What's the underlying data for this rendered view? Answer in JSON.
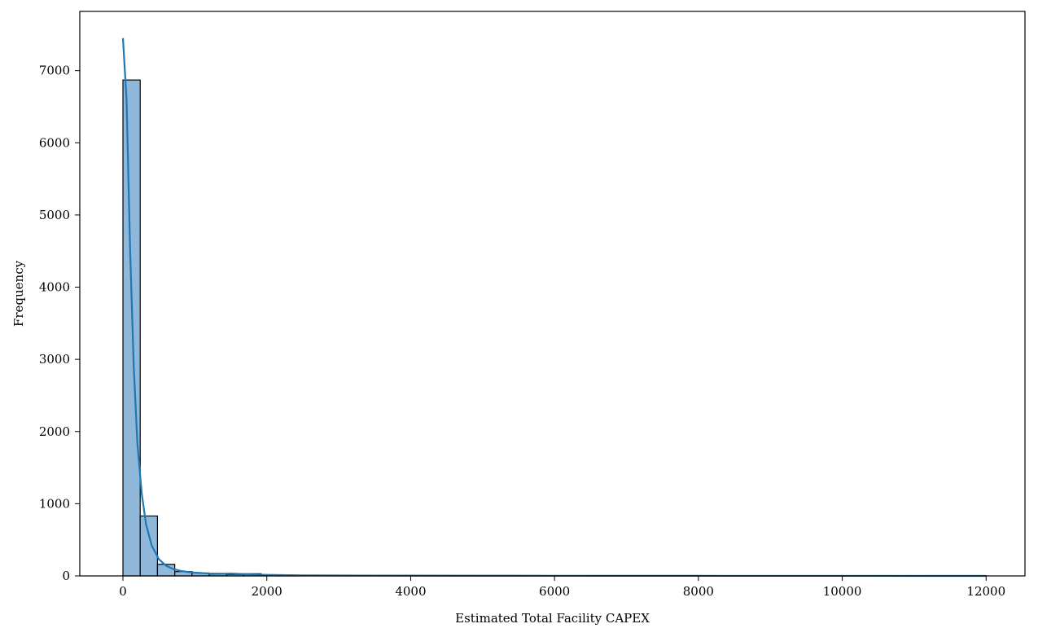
{
  "chart_data": {
    "type": "bar",
    "xlabel": "Estimated Total Facility CAPEX",
    "ylabel": "Frequency",
    "xlim": [
      -600,
      12540
    ],
    "ylim": [
      0,
      7820
    ],
    "x_ticks": [
      0,
      2000,
      4000,
      6000,
      8000,
      10000,
      12000
    ],
    "y_ticks": [
      0,
      1000,
      2000,
      3000,
      4000,
      5000,
      6000,
      7000
    ],
    "grid": false,
    "bin_width": 240,
    "bins_start": 0,
    "values": [
      6870,
      830,
      160,
      60,
      40,
      25,
      20,
      30,
      15,
      10,
      8,
      5,
      4,
      3,
      3,
      2,
      2,
      2,
      1,
      1,
      1,
      1,
      1,
      1,
      1,
      1,
      0,
      1,
      0,
      1,
      0,
      0,
      1,
      0,
      0,
      0,
      0,
      1,
      0,
      0,
      0,
      0,
      0,
      0,
      0,
      0,
      0,
      0,
      0,
      1
    ],
    "kde": {
      "name": "",
      "x": [
        0,
        50,
        100,
        150,
        200,
        260,
        320,
        400,
        500,
        600,
        700,
        800,
        900,
        1000,
        1200,
        1400,
        1500,
        1600,
        1800,
        2000,
        2200,
        2500,
        3000,
        3500,
        4000,
        5000,
        6000,
        8000,
        10000,
        12000
      ],
      "y": [
        7450,
        6600,
        4500,
        2900,
        1850,
        1150,
        720,
        420,
        230,
        140,
        95,
        70,
        55,
        45,
        33,
        30,
        32,
        28,
        20,
        15,
        11,
        8,
        6,
        5,
        4,
        3,
        2,
        1,
        0.5,
        0.2
      ]
    },
    "colors": {
      "bar_fill": "#8fb8da",
      "bar_edge": "#000000",
      "kde_line": "#1f77b4"
    }
  }
}
